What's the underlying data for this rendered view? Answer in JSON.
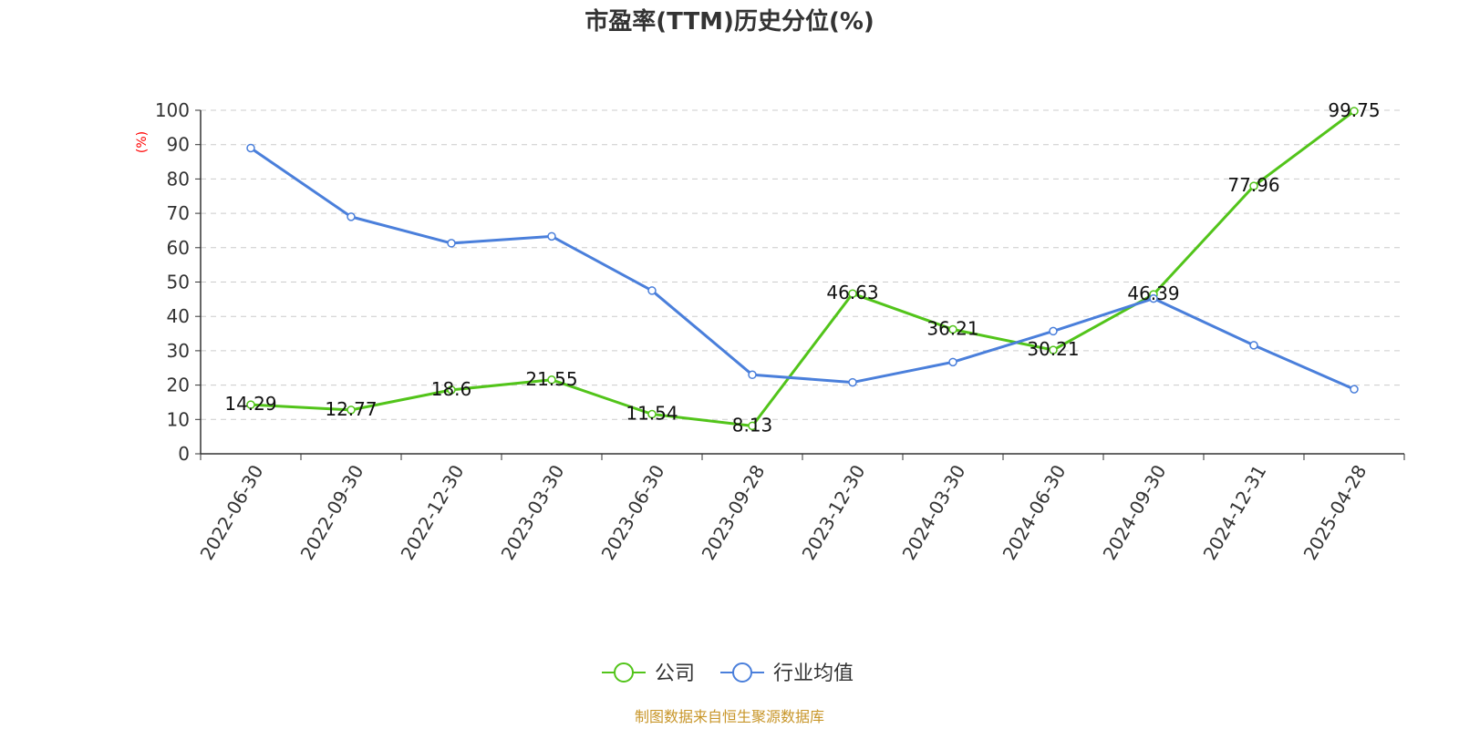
{
  "chart_data": {
    "type": "line",
    "title": "市盈率(TTM)历史分位(%)",
    "ylabel": "(%)",
    "xlabel": "",
    "ylim": [
      0,
      100
    ],
    "yticks": [
      0,
      10,
      20,
      30,
      40,
      50,
      60,
      70,
      80,
      90,
      100
    ],
    "grid": true,
    "legend_position": "bottom-center",
    "categories": [
      "2022-06-30",
      "2022-09-30",
      "2022-12-30",
      "2023-03-30",
      "2023-06-30",
      "2023-09-28",
      "2023-12-30",
      "2024-03-30",
      "2024-06-30",
      "2024-09-30",
      "2024-12-31",
      "2025-04-28"
    ],
    "series": [
      {
        "name": "公司",
        "color": "#52c41a",
        "values": [
          14.29,
          12.77,
          18.6,
          21.55,
          11.54,
          8.13,
          46.63,
          36.21,
          30.21,
          46.39,
          77.96,
          99.75
        ],
        "labels": [
          "14.29",
          "12.77",
          "18.6",
          "21.55",
          "11.54",
          "8.13",
          "46.63",
          "36.21",
          "30.21",
          "46.39",
          "77.96",
          "99.75"
        ]
      },
      {
        "name": "行业均值",
        "color": "#4a7fdb",
        "values": [
          89.0,
          69.0,
          61.3,
          63.3,
          47.5,
          23.0,
          20.8,
          26.7,
          35.7,
          45.2,
          31.6,
          18.8
        ]
      }
    ]
  },
  "source": {
    "text": "制图数据来自恒生聚源数据库",
    "color": "#c8962a"
  }
}
